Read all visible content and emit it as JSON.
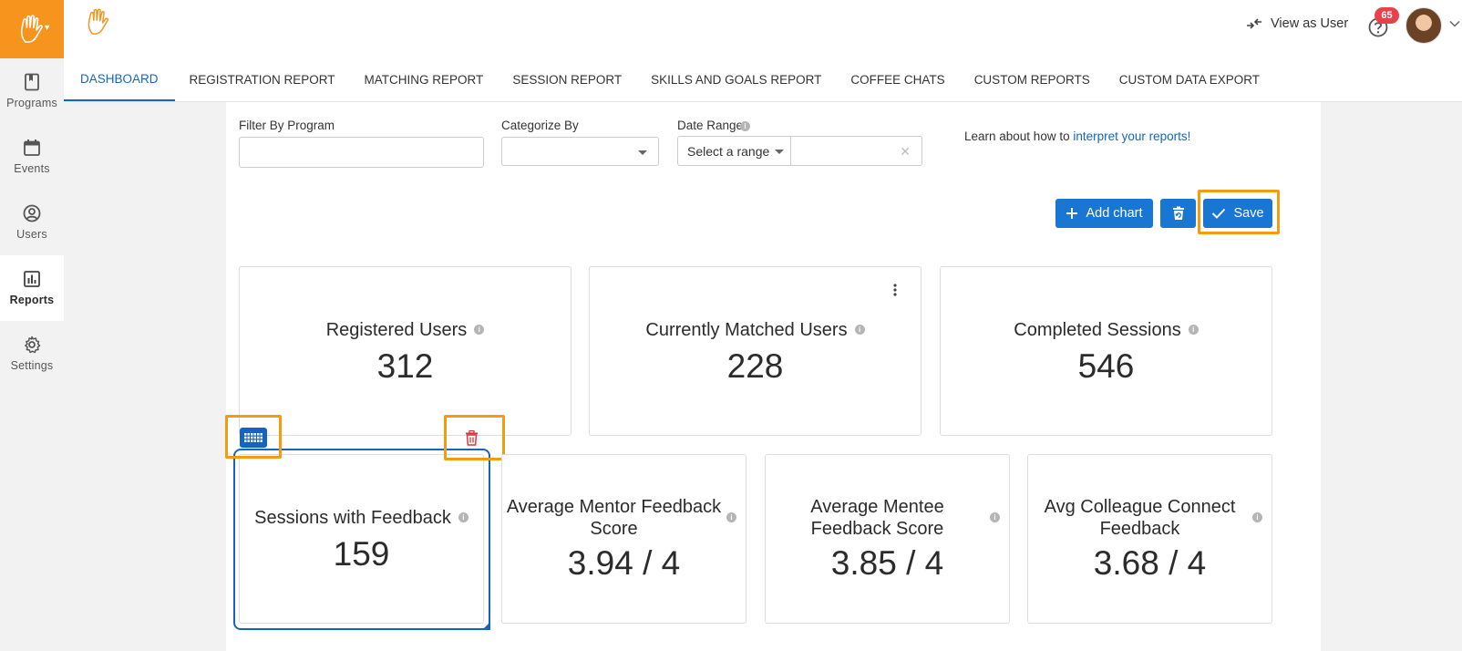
{
  "sidebar": {
    "items": [
      {
        "label": "Programs",
        "icon": "book-icon"
      },
      {
        "label": "Events",
        "icon": "calendar-icon"
      },
      {
        "label": "Users",
        "icon": "user-circle-icon"
      },
      {
        "label": "Reports",
        "icon": "bar-chart-icon"
      },
      {
        "label": "Settings",
        "icon": "gear-icon"
      }
    ]
  },
  "header": {
    "view_as_user": "View as User",
    "notification_count": "65"
  },
  "tabs": [
    {
      "label": "DASHBOARD"
    },
    {
      "label": "REGISTRATION REPORT"
    },
    {
      "label": "MATCHING REPORT"
    },
    {
      "label": "SESSION REPORT"
    },
    {
      "label": "SKILLS AND GOALS REPORT"
    },
    {
      "label": "COFFEE CHATS"
    },
    {
      "label": "CUSTOM REPORTS"
    },
    {
      "label": "CUSTOM DATA EXPORT"
    }
  ],
  "filters": {
    "program_label": "Filter By Program",
    "program_value": "",
    "categorize_label": "Categorize By",
    "categorize_value": "",
    "date_range_label": "Date Range",
    "date_range_select": "Select a range",
    "learn_prefix": "Learn about how to ",
    "learn_link": "interpret your reports!"
  },
  "toolbar": {
    "add_chart": "Add chart",
    "save": "Save"
  },
  "cards_row1": [
    {
      "title": "Registered Users",
      "value": "312"
    },
    {
      "title": "Currently Matched Users",
      "value": "228"
    },
    {
      "title": "Completed Sessions",
      "value": "546"
    }
  ],
  "cards_row2": [
    {
      "title": "Sessions with Feedback",
      "value": "159"
    },
    {
      "title_line1": "Average Mentor Feedback",
      "title_line2": "Score",
      "value": "3.94 / 4"
    },
    {
      "title_line1": "Average Mentee",
      "title_line2": "Feedback Score",
      "value": "3.85 / 4"
    },
    {
      "title_line1": "Avg Colleague Connect",
      "title_line2": "Feedback",
      "value": "3.68 / 4"
    }
  ],
  "colors": {
    "brand_orange": "#f7941d",
    "primary_blue": "#1976d2",
    "highlight_orange": "#f39c12",
    "trash_red": "#d9363e"
  }
}
